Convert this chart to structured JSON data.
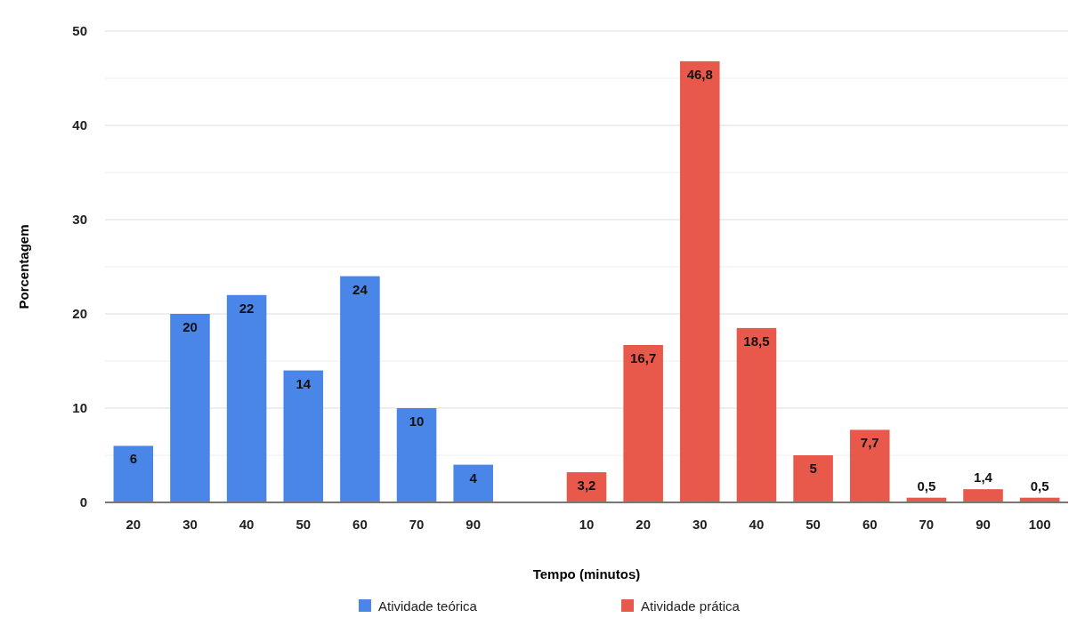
{
  "chart_data": {
    "type": "bar",
    "xlabel": "Tempo (minutos)",
    "ylabel": "Porcentagem",
    "categories": [
      "20",
      "30",
      "40",
      "50",
      "60",
      "70",
      "90",
      null,
      "10",
      "20",
      "30",
      "40",
      "50",
      "60",
      "70",
      "90",
      "100"
    ],
    "series": [
      {
        "name": "Atividade teórica",
        "color": "#4a86e8",
        "values": [
          6,
          20,
          22,
          14,
          24,
          10,
          4,
          null,
          null,
          null,
          null,
          null,
          null,
          null,
          null,
          null,
          null
        ],
        "value_labels": [
          "6",
          "20",
          "22",
          "14",
          "24",
          "10",
          "4",
          null,
          null,
          null,
          null,
          null,
          null,
          null,
          null,
          null,
          null
        ]
      },
      {
        "name": "Atividade prática",
        "color": "#e8594b",
        "values": [
          null,
          null,
          null,
          null,
          null,
          null,
          null,
          null,
          3.2,
          16.7,
          46.8,
          18.5,
          5,
          7.7,
          0.5,
          1.4,
          0.5
        ],
        "value_labels": [
          null,
          null,
          null,
          null,
          null,
          null,
          null,
          null,
          "3,2",
          "16,7",
          "46,8",
          "18,5",
          "5",
          "7,7",
          "0,5",
          "1,4",
          "0,5"
        ]
      }
    ],
    "ylim": [
      0,
      50
    ],
    "yticks": [
      0,
      {
        "value": 5,
        "label": null
      },
      10,
      {
        "value": 15,
        "label": null
      },
      20,
      {
        "value": 25,
        "label": null
      },
      30,
      {
        "value": 35,
        "label": null
      },
      40,
      {
        "value": 45,
        "label": null
      },
      50
    ],
    "grid": "y",
    "legend": "bottom"
  }
}
